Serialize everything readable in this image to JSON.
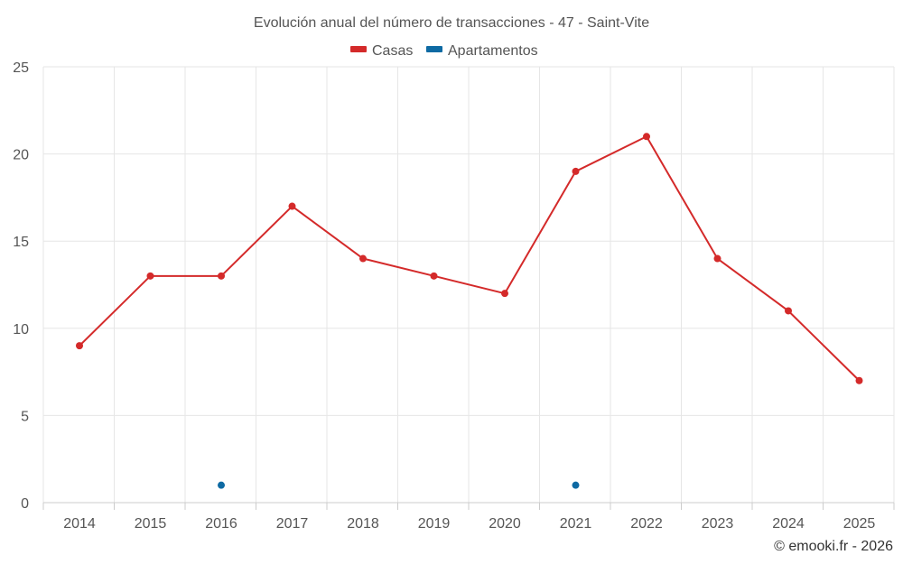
{
  "chart_data": {
    "type": "line",
    "title": "Evolución anual del número de transacciones - 47 - Saint-Vite",
    "categories": [
      "2014",
      "2015",
      "2016",
      "2017",
      "2018",
      "2019",
      "2020",
      "2021",
      "2022",
      "2023",
      "2024",
      "2025"
    ],
    "ylim": [
      0,
      25
    ],
    "yticks": [
      0,
      5,
      10,
      15,
      20,
      25
    ],
    "grid": true,
    "legend_position": "top-center",
    "series": [
      {
        "name": "Casas",
        "color": "#d42a2a",
        "values": [
          9,
          13,
          13,
          17,
          14,
          13,
          12,
          19,
          21,
          14,
          11,
          7
        ]
      },
      {
        "name": "Apartamentos",
        "color": "#0e6aa3",
        "values": [
          null,
          null,
          1,
          null,
          null,
          null,
          null,
          1,
          null,
          null,
          null,
          null
        ]
      }
    ]
  },
  "footer": {
    "credit": "© emooki.fr - 2026"
  }
}
